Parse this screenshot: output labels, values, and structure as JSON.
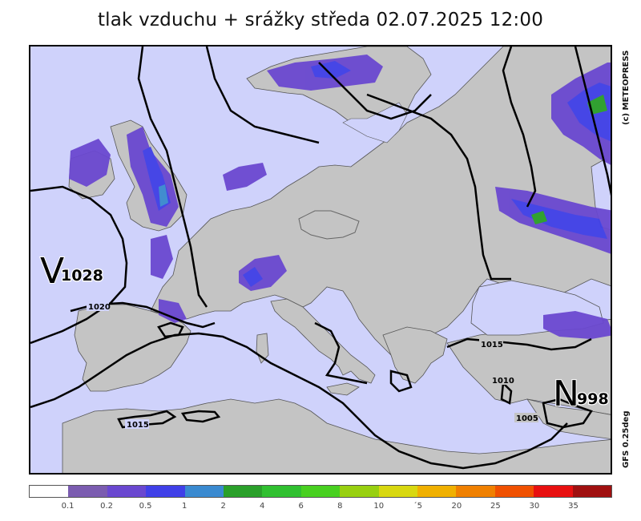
{
  "title": "tlak vzduchu + srážky  středa 02.07.2025 12:00",
  "credit": "(c) METEOPRESS",
  "model": "GFS 0.25deg",
  "colors": {
    "sea": "#cfd2fb",
    "land": "#c4c4c4",
    "isobar": "#000000",
    "border": "#444444"
  },
  "pressure_centers": [
    {
      "type": "high",
      "letter": "V",
      "value": "1028"
    },
    {
      "type": "low",
      "letter": "N",
      "value": "998"
    }
  ],
  "isobar_labels": [
    "1020",
    "1015",
    "1015",
    "1010",
    "1005"
  ],
  "legend": {
    "colors": [
      "#ffffff",
      "#7b5cb0",
      "#6a48d0",
      "#4040e8",
      "#3a8ad0",
      "#2aa02a",
      "#30c030",
      "#48d020",
      "#98d010",
      "#d8d810",
      "#f0b000",
      "#f08000",
      "#f05000",
      "#e81010",
      "#a01010"
    ],
    "labels": [
      "0.1",
      "0.2",
      "0.5",
      "1",
      "2",
      "4",
      "6",
      "8",
      "10",
      "´5",
      "20",
      "25",
      "30",
      "35"
    ]
  }
}
